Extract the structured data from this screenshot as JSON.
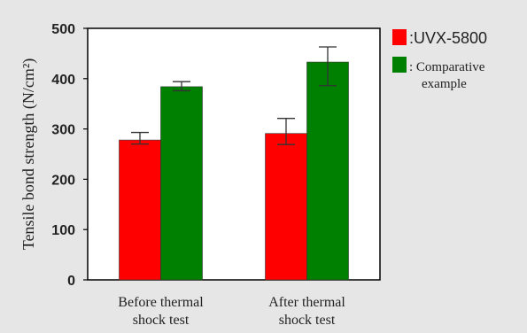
{
  "chart_data": {
    "type": "bar",
    "categories": [
      "Before thermal\nshock test",
      "After thermal\nshock test"
    ],
    "ylabel": "Tensile bond strength (N/cm²)",
    "ylim": [
      0,
      500
    ],
    "yticks": [
      0,
      100,
      200,
      300,
      400,
      500
    ],
    "grid": false,
    "legend_position": "right",
    "series": [
      {
        "name": "UVX-5800",
        "legend_label": ":UVX-5800",
        "color": "#ff0000",
        "values": [
          278,
          291
        ],
        "error": [
          [
            270,
            293
          ],
          [
            269,
            321
          ]
        ]
      },
      {
        "name": "Comparative example",
        "legend_label": ": Comparative\nexample",
        "color": "#008000",
        "values": [
          384,
          433
        ],
        "error": [
          [
            376,
            394
          ],
          [
            386,
            463
          ]
        ]
      }
    ]
  }
}
